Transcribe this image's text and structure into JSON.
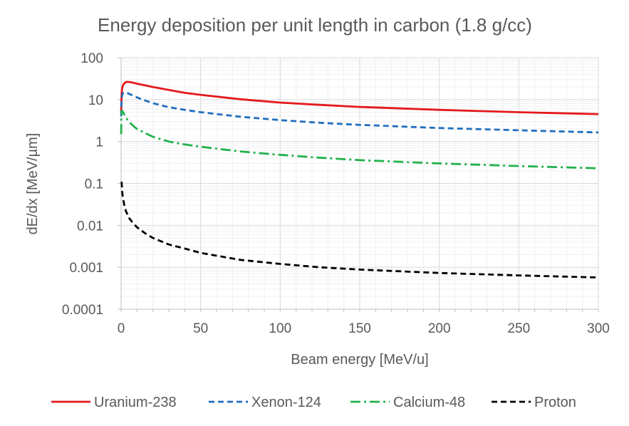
{
  "chart_data": {
    "type": "line",
    "title": "Energy deposition per unit length in carbon (1.8 g/cc)",
    "xlabel": "Beam energy [MeV/u]",
    "ylabel": "dE/dx [MeV/µm]",
    "xlim": [
      0,
      300
    ],
    "ylim": [
      0.0001,
      100
    ],
    "yscale": "log",
    "grid": true,
    "legend_position": "bottom",
    "x_ticks": [
      "0",
      "50",
      "100",
      "150",
      "200",
      "250",
      "300"
    ],
    "y_ticks": [
      "0.0001",
      "0.001",
      "0.01",
      "0.1",
      "1",
      "10",
      "100"
    ],
    "series": [
      {
        "name": "Uranium-238",
        "color": "#e41a1c",
        "dash": "solid",
        "x": [
          0.05,
          0.3,
          0.7,
          1.2,
          2,
          3,
          4,
          6,
          8,
          10,
          15,
          20,
          30,
          40,
          50,
          75,
          100,
          125,
          150,
          200,
          250,
          300
        ],
        "y": [
          5,
          14,
          19,
          22,
          24.5,
          26,
          26.5,
          26,
          25,
          24,
          22,
          20,
          17,
          14.5,
          13,
          10.2,
          8.5,
          7.5,
          6.7,
          5.7,
          5.0,
          4.5
        ]
      },
      {
        "name": "Xenon-124",
        "color": "#1f6fbf",
        "dash": "dashed",
        "x": [
          0.05,
          0.3,
          0.6,
          1,
          1.5,
          2,
          3,
          4,
          6,
          8,
          10,
          15,
          20,
          30,
          40,
          50,
          75,
          100,
          125,
          150,
          200,
          250,
          300
        ],
        "y": [
          4,
          10,
          12.5,
          13.8,
          14.5,
          14.8,
          14.7,
          14.3,
          13.2,
          12.2,
          11.3,
          9.5,
          8.2,
          6.6,
          5.7,
          5.0,
          3.9,
          3.25,
          2.8,
          2.5,
          2.1,
          1.85,
          1.65
        ]
      },
      {
        "name": "Calcium-48",
        "color": "#22b14c",
        "dash": "dash-dot",
        "x": [
          0.05,
          0.2,
          0.5,
          1,
          1.5,
          2,
          3,
          4,
          6,
          8,
          10,
          15,
          20,
          30,
          40,
          50,
          75,
          100,
          125,
          150,
          200,
          250,
          300
        ],
        "y": [
          1.5,
          4,
          5.5,
          5.2,
          4.8,
          4.4,
          3.8,
          3.3,
          2.7,
          2.3,
          2.0,
          1.6,
          1.3,
          1.0,
          0.85,
          0.75,
          0.58,
          0.48,
          0.41,
          0.36,
          0.3,
          0.26,
          0.23
        ]
      },
      {
        "name": "Proton",
        "color": "#000000",
        "dash": "dashed",
        "x": [
          0.3,
          0.6,
          1,
          2,
          3,
          5,
          7,
          10,
          15,
          20,
          30,
          40,
          50,
          75,
          100,
          125,
          150,
          200,
          250,
          300
        ],
        "y": [
          0.11,
          0.07,
          0.05,
          0.03,
          0.022,
          0.015,
          0.012,
          0.009,
          0.0065,
          0.005,
          0.0035,
          0.0028,
          0.0022,
          0.0015,
          0.0012,
          0.001,
          0.00088,
          0.00073,
          0.00064,
          0.00057
        ]
      }
    ]
  }
}
